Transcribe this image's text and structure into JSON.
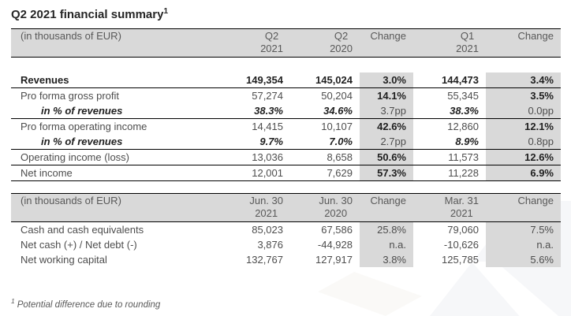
{
  "title": "Q2 2021 financial summary",
  "title_superscript": "1",
  "footnote": {
    "marker": "1",
    "text": "Potential difference due to rounding"
  },
  "colors": {
    "header_bg": "#d9d9d9",
    "change_cell_bg": "#d9d9d9",
    "table_border": "#000000",
    "body_text": "#4d4d4d",
    "emphasis_text": "#1f1f1f",
    "header_text": "#595959",
    "footnote_text": "#595959",
    "watermark": "#f6f7f9"
  },
  "table1": {
    "unit_label": "(in thousands of EUR)",
    "columns": [
      {
        "line1": "Q2",
        "line2": "2021"
      },
      {
        "line1": "Q2",
        "line2": "2020"
      },
      {
        "line1": "Change",
        "line2": ""
      },
      {
        "line1": "Q1",
        "line2": "2021"
      },
      {
        "line1": "Change",
        "line2": ""
      }
    ],
    "rows": [
      {
        "label": "Revenues",
        "values": [
          "149,354",
          "145,024",
          "3.0%",
          "144,473",
          "3.4%"
        ],
        "type": "total",
        "separator_below": true
      },
      {
        "label": "Pro forma gross profit",
        "values": [
          "57,274",
          "50,204",
          "14.1%",
          "55,345",
          "3.5%"
        ],
        "type": "line-item",
        "separator_below": false
      },
      {
        "label": "in % of revenues",
        "values": [
          "38.3%",
          "34.6%",
          "3.7pp",
          "38.3%",
          "0.0pp"
        ],
        "type": "ratio",
        "separator_below": true
      },
      {
        "label": "Pro forma operating income",
        "values": [
          "14,415",
          "10,107",
          "42.6%",
          "12,860",
          "12.1%"
        ],
        "type": "line-item",
        "separator_below": false
      },
      {
        "label": "in % of revenues",
        "values": [
          "9.7%",
          "7.0%",
          "2.7pp",
          "8.9%",
          "0.8pp"
        ],
        "type": "ratio",
        "separator_below": true
      },
      {
        "label": "Operating income (loss)",
        "values": [
          "13,036",
          "8,658",
          "50.6%",
          "11,573",
          "12.6%"
        ],
        "type": "line-item",
        "separator_below": true
      },
      {
        "label": "Net income",
        "values": [
          "12,001",
          "7,629",
          "57.3%",
          "11,228",
          "6.9%"
        ],
        "type": "line-item",
        "separator_below": true
      }
    ]
  },
  "table2": {
    "unit_label": "(in thousands of EUR)",
    "columns": [
      {
        "line1": "Jun. 30",
        "line2": "2021"
      },
      {
        "line1": "Jun. 30",
        "line2": "2020"
      },
      {
        "line1": "Change",
        "line2": ""
      },
      {
        "line1": "Mar. 31",
        "line2": "2021"
      },
      {
        "line1": "Change",
        "line2": ""
      }
    ],
    "rows": [
      {
        "label": "Cash and cash equivalents",
        "values": [
          "85,023",
          "67,586",
          "25.8%",
          "79,060",
          "7.5%"
        ],
        "type": "plain",
        "separator_below": false
      },
      {
        "label": "Net cash (+) / Net debt (-)",
        "values": [
          "3,876",
          "-44,928",
          "n.a.",
          "-10,626",
          "n.a."
        ],
        "type": "plain",
        "separator_below": false
      },
      {
        "label": "Net working capital",
        "values": [
          "132,767",
          "127,917",
          "3.8%",
          "125,785",
          "5.6%"
        ],
        "type": "plain",
        "separator_below": false
      }
    ]
  }
}
